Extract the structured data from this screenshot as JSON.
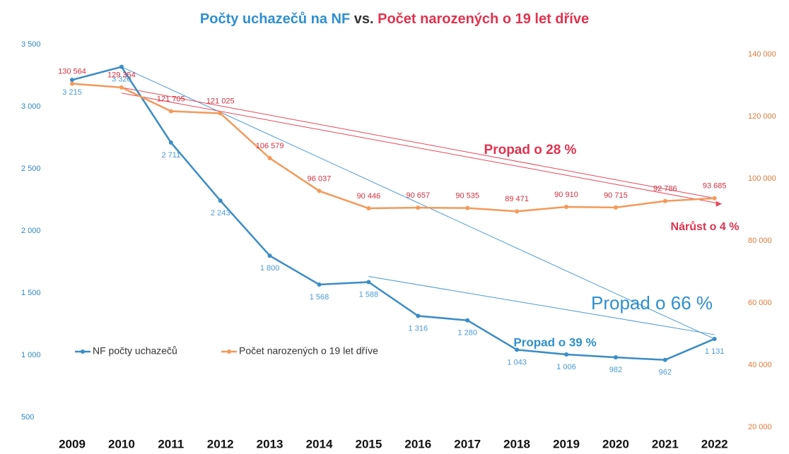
{
  "chart_data": {
    "type": "line",
    "title": [
      "Počty uchazečů na NF",
      "vs.",
      "Počet narozených o 19 let dříve"
    ],
    "categories": [
      "2009",
      "2010",
      "2011",
      "2012",
      "2013",
      "2014",
      "2015",
      "2016",
      "2017",
      "2018",
      "2019",
      "2020",
      "2021",
      "2022"
    ],
    "series": [
      {
        "name": "NF počty uchazečů",
        "color": "#3a8cc6",
        "values": [
          3215,
          3320,
          2711,
          2243,
          1800,
          1568,
          1588,
          1316,
          1280,
          1043,
          1006,
          982,
          962,
          1131
        ],
        "value_labels": [
          "3 215",
          "3 320",
          "2 711",
          "2 243",
          "1 800",
          "1 568",
          "1 588",
          "1 316",
          "1 280",
          "1 043",
          "1 006",
          "982",
          "962",
          "1 131"
        ]
      },
      {
        "name": "Počet narozených o 19 let dříve",
        "color": "#f4995a",
        "axis": "y2",
        "values": [
          130564,
          129354,
          121705,
          121025,
          106579,
          96037,
          90446,
          90657,
          90535,
          89471,
          90910,
          90715,
          92786,
          93685
        ],
        "value_labels": [
          "130 564",
          "129 354",
          "121 705",
          "121 025",
          "106 579",
          "96 037",
          "90 446",
          "90 657",
          "90 535",
          "89 471",
          "90 910",
          "90 715",
          "92 786",
          "93 685"
        ]
      }
    ],
    "ylim": [
      500,
      3500
    ],
    "yticks": [
      {
        "value": 3500,
        "label": "3 500"
      },
      {
        "value": 3000,
        "label": "3 000"
      },
      {
        "value": 2500,
        "label": "2 500"
      },
      {
        "value": 2000,
        "label": "2 000"
      },
      {
        "value": 1500,
        "label": "1 500"
      },
      {
        "value": 1000,
        "label": "1 000"
      },
      500
    ],
    "y2lim": [
      20000,
      140000
    ],
    "y2ticks": [
      {
        "value": 140000,
        "label": "140 000"
      },
      {
        "value": 120000,
        "label": "120 000"
      },
      {
        "value": 100000,
        "label": "100 000"
      },
      {
        "value": 80000,
        "label": "80 000"
      },
      {
        "value": 60000,
        "label": "60 000"
      },
      {
        "value": 40000,
        "label": "40 000"
      },
      {
        "value": 20000,
        "label": "20 000"
      }
    ],
    "annotations": [
      "Propad o 28 %",
      "Nárůst o 4 %",
      "Propad o 66 %",
      "Propad o 39 %"
    ],
    "grid": false
  }
}
